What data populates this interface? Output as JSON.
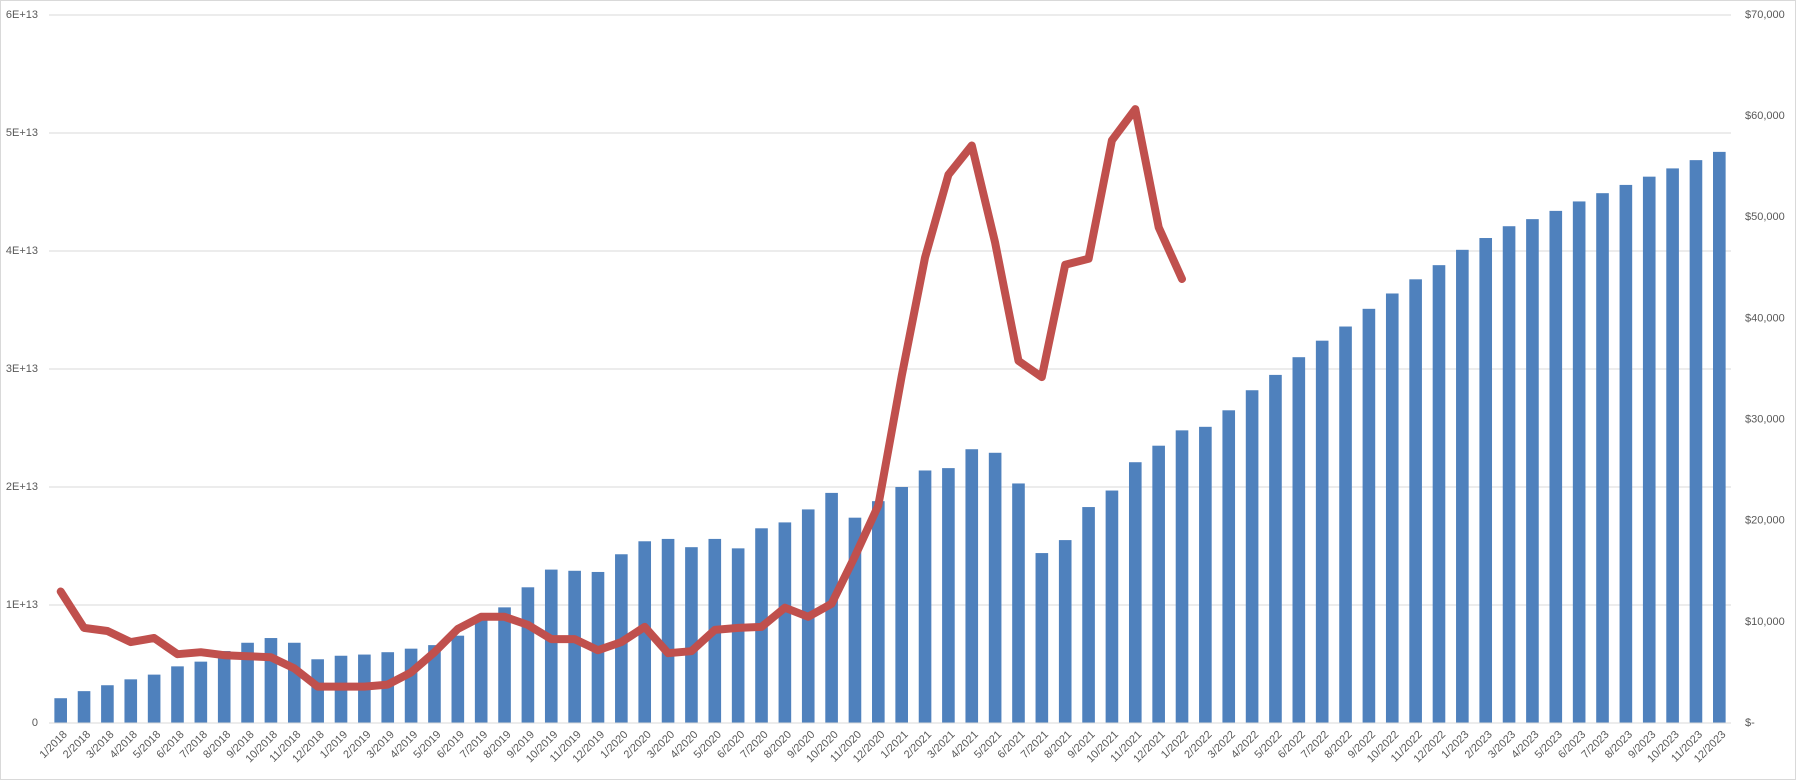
{
  "chart_data": {
    "type": "bar-line",
    "categories": [
      "1/2018",
      "2/2018",
      "3/2018",
      "4/2018",
      "5/2018",
      "6/2018",
      "7/2018",
      "8/2018",
      "9/2018",
      "10/2018",
      "11/2018",
      "12/2018",
      "1/2019",
      "2/2019",
      "3/2019",
      "4/2019",
      "5/2019",
      "6/2019",
      "7/2019",
      "8/2019",
      "9/2019",
      "10/2019",
      "11/2019",
      "12/2019",
      "1/2020",
      "2/2020",
      "3/2020",
      "4/2020",
      "5/2020",
      "6/2020",
      "7/2020",
      "8/2020",
      "9/2020",
      "10/2020",
      "11/2020",
      "12/2020",
      "1/2021",
      "2/2021",
      "3/2021",
      "4/2021",
      "5/2021",
      "6/2021",
      "7/2021",
      "8/2021",
      "9/2021",
      "10/2021",
      "11/2021",
      "12/2021",
      "1/2022",
      "2/2022",
      "3/2022",
      "4/2022",
      "5/2022",
      "6/2022",
      "7/2022",
      "8/2022",
      "9/2022",
      "10/2022",
      "11/2022",
      "12/2022",
      "1/2023",
      "2/2023",
      "3/2023",
      "4/2023",
      "5/2023",
      "6/2023",
      "7/2023",
      "8/2023",
      "9/2023",
      "10/2023",
      "11/2023",
      "12/2023"
    ],
    "series": [
      {
        "type": "bar",
        "color": "#4f81bd",
        "axis": "y",
        "values": [
          2100000000000.0,
          2700000000000.0,
          3200000000000.0,
          3700000000000.0,
          4100000000000.0,
          4800000000000.0,
          5200000000000.0,
          6100000000000.0,
          6800000000000.0,
          7200000000000.0,
          6800000000000.0,
          5400000000000.0,
          5700000000000.0,
          5800000000000.0,
          6000000000000.0,
          6300000000000.0,
          6600000000000.0,
          7400000000000.0,
          8700000000000.0,
          9800000000000.0,
          11500000000000.0,
          13000000000000.0,
          12900000000000.0,
          12800000000000.0,
          14300000000000.0,
          15400000000000.0,
          15600000000000.0,
          14900000000000.0,
          15600000000000.0,
          14800000000000.0,
          16500000000000.0,
          17000000000000.0,
          18100000000000.0,
          19500000000000.0,
          17400000000000.0,
          18800000000000.0,
          20000000000000.0,
          21400000000000.0,
          21600000000000.0,
          23200000000000.0,
          22900000000000.0,
          20300000000000.0,
          14400000000000.0,
          15500000000000.0,
          18300000000000.0,
          19700000000000.0,
          22100000000000.0,
          23500000000000.0,
          24800000000000.0,
          25100000000000.0,
          26500000000000.0,
          28200000000000.0,
          29500000000000.0,
          31000000000000.0,
          32400000000000.0,
          33600000000000.0,
          35100000000000.0,
          36400000000000.0,
          37600000000000.0,
          38800000000000.0,
          40100000000000.0,
          41100000000000.0,
          42100000000000.0,
          42700000000000.0,
          43400000000000.0,
          44200000000000.0,
          44900000000000.0,
          45600000000000.0,
          46300000000000.0,
          47000000000000.0,
          47700000000000.0,
          48400000000000.0
        ]
      },
      {
        "type": "line",
        "color": "#c0504d",
        "axis": "y2",
        "values": [
          13000,
          9400,
          9100,
          8000,
          8400,
          6800,
          7000,
          6700,
          6600,
          6500,
          5400,
          3600,
          3600,
          3600,
          3800,
          5000,
          7000,
          9300,
          10500,
          10500,
          9700,
          8300,
          8300,
          7200,
          8000,
          9500,
          6900,
          7100,
          9200,
          9400,
          9500,
          11400,
          10500,
          11800,
          16500,
          21500,
          34300,
          46000,
          54200,
          57100,
          47500,
          35800,
          34200,
          45300,
          45900,
          57600,
          60700,
          49000,
          43900,
          null,
          null,
          null,
          null,
          null,
          null,
          null,
          null,
          null,
          null,
          null,
          null,
          null,
          null,
          null,
          null,
          null,
          null,
          null,
          null,
          null,
          null,
          null
        ]
      }
    ],
    "ylim": [
      0,
      60000000000000.0
    ],
    "yticks": [
      0,
      {
        "value": 10000000000000.0,
        "label": "1E+13"
      },
      {
        "value": 20000000000000.0,
        "label": "2E+13"
      },
      {
        "value": 30000000000000.0,
        "label": "3E+13"
      },
      {
        "value": 40000000000000.0,
        "label": "4E+13"
      },
      {
        "value": 50000000000000.0,
        "label": "5E+13"
      },
      {
        "value": 60000000000000.0,
        "label": "6E+13"
      }
    ],
    "y2lim": [
      0,
      70000
    ],
    "y2ticks": [
      {
        "value": 0,
        "label": "$-"
      },
      {
        "value": 10000,
        "label": "$10,000"
      },
      {
        "value": 20000,
        "label": "$20,000"
      },
      {
        "value": 30000,
        "label": "$30,000"
      },
      {
        "value": 40000,
        "label": "$40,000"
      },
      {
        "value": 50000,
        "label": "$50,000"
      },
      {
        "value": 60000,
        "label": "$60,000"
      },
      {
        "value": 70000,
        "label": "$70,000"
      }
    ],
    "grid": true
  }
}
